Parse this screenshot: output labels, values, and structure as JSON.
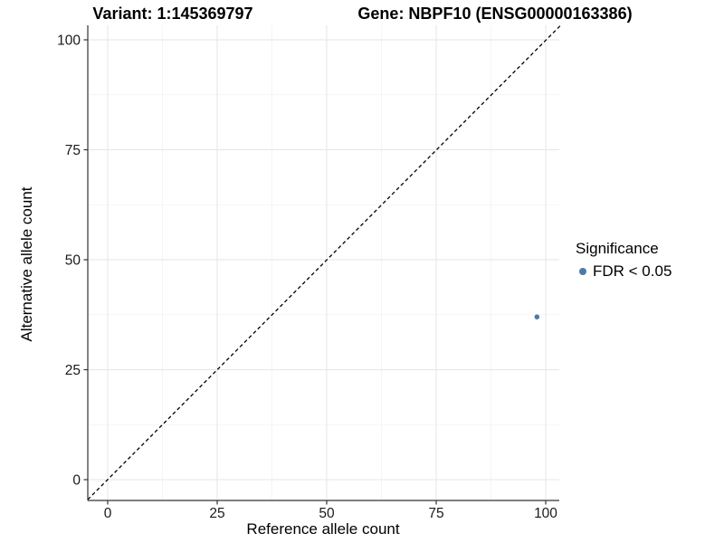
{
  "figure": {
    "title_left": "Variant: 1:145369797",
    "title_right": "Gene: NBPF10 (ENSG00000163386)"
  },
  "chart_data": {
    "type": "scatter",
    "title_left": "Variant: 1:145369797",
    "title_right": "Gene: NBPF10 (ENSG00000163386)",
    "xlabel": "Reference allele count",
    "ylabel": "Alternative allele count",
    "xlim": [
      -5,
      103
    ],
    "ylim": [
      -5,
      103
    ],
    "x_ticks": [
      0,
      25,
      50,
      75,
      100
    ],
    "y_ticks": [
      0,
      25,
      50,
      75,
      100
    ],
    "x_minor_ticks": [
      12.5,
      37.5,
      62.5,
      87.5
    ],
    "y_minor_ticks": [
      12.5,
      37.5,
      62.5,
      87.5
    ],
    "grid": true,
    "identity_line": {
      "style": "dashed",
      "slope": 1,
      "intercept": 0,
      "color": "#000000"
    },
    "series": [
      {
        "name": "FDR < 0.05",
        "color": "#4d7aa8",
        "points": [
          {
            "x": 98,
            "y": 37
          }
        ]
      }
    ],
    "legend": {
      "title": "Significance",
      "position": "right",
      "entries": [
        {
          "label": "FDR < 0.05",
          "color": "#4d7aa8",
          "marker": "circle"
        }
      ]
    }
  },
  "colors": {
    "point": "#4d7aa8",
    "axis_line": "#333333",
    "tick_text": "#1a1a1a",
    "grid_major": "#e6e6e6",
    "grid_minor": "#f1f1f1",
    "identity_line": "#000000",
    "background": "#ffffff"
  }
}
